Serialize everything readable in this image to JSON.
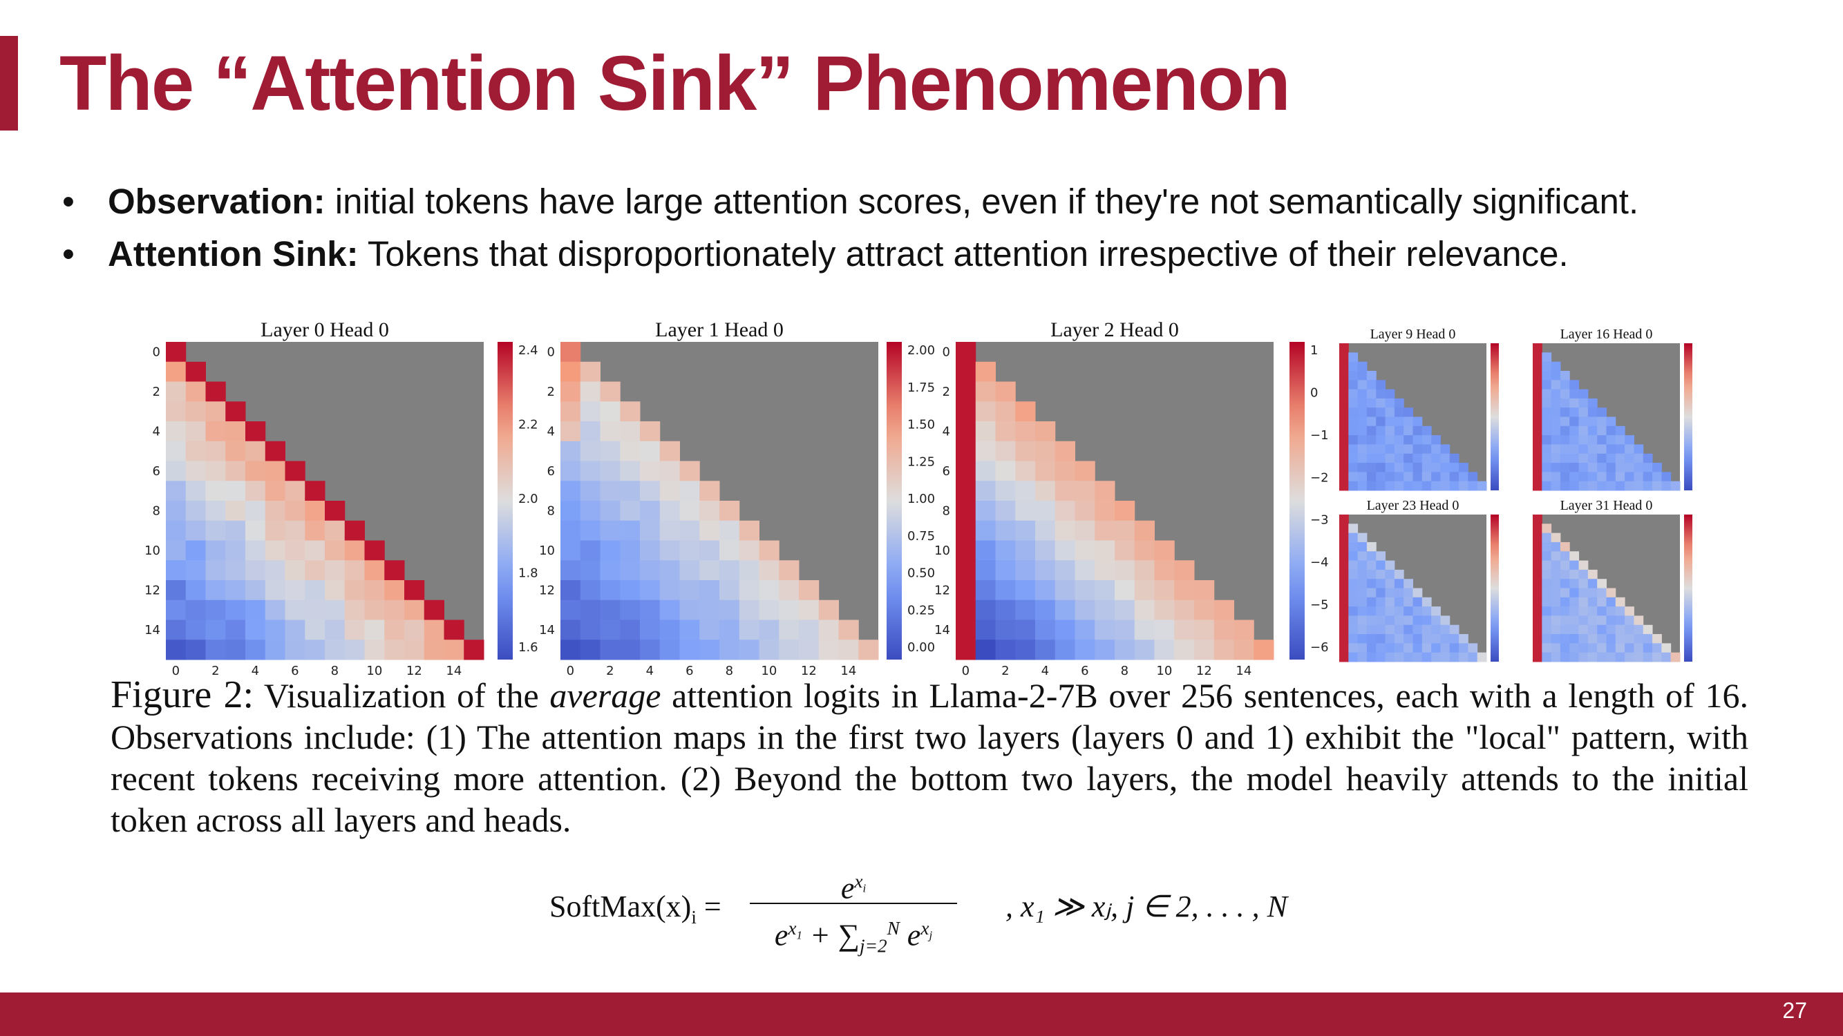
{
  "slide": {
    "title": "The “Attention Sink” Phenomenon",
    "page_number": "27",
    "bullets": [
      {
        "term": "Observation:",
        "text": " initial tokens have large attention scores, even if they're not semantically significant."
      },
      {
        "term": "Attention Sink:",
        "text": " Tokens that disproportionately attract attention irrespective of their relevance."
      }
    ]
  },
  "figure": {
    "panels": [
      {
        "title": "Layer 0 Head 0",
        "xticks": [
          "0",
          "2",
          "4",
          "6",
          "8",
          "10",
          "12",
          "14"
        ],
        "yticks": [
          "0",
          "2",
          "4",
          "6",
          "8",
          "10",
          "12",
          "14"
        ],
        "colorbar_ticks": [
          "2.4",
          "2.2",
          "2.0",
          "1.8",
          "1.6"
        ]
      },
      {
        "title": "Layer 1 Head 0",
        "xticks": [
          "0",
          "2",
          "4",
          "6",
          "8",
          "10",
          "12",
          "14"
        ],
        "yticks": [
          "0",
          "2",
          "4",
          "6",
          "8",
          "10",
          "12",
          "14"
        ],
        "colorbar_ticks": [
          "2.00",
          "1.75",
          "1.50",
          "1.25",
          "1.00",
          "0.75",
          "0.50",
          "0.25",
          "0.00"
        ]
      },
      {
        "title": "Layer 2 Head 0",
        "xticks": [
          "0",
          "2",
          "4",
          "6",
          "8",
          "10",
          "12",
          "14"
        ],
        "yticks": [
          "0",
          "2",
          "4",
          "6",
          "8",
          "10",
          "12",
          "14"
        ],
        "colorbar_ticks": [
          "1",
          "0",
          "−1",
          "−2",
          "−3",
          "−4",
          "−5",
          "−6"
        ]
      },
      {
        "title": "Layer 9 Head 0"
      },
      {
        "title": "Layer 16 Head 0"
      },
      {
        "title": "Layer 23 Head 0"
      },
      {
        "title": "Layer 31 Head 0"
      }
    ],
    "caption": {
      "label": "Figure 2:",
      "before_italic": " Visualization of the ",
      "italic": "average",
      "after_italic": " attention logits in Llama-2-7B over 256 sentences, each with a length of 16. Observations include: (1) The attention maps in the first two layers (layers 0 and 1) exhibit the \"local\" pattern, with recent tokens receiving more attention. (2) Beyond the bottom two layers, the model heavily attends to the initial token across all layers and heads."
    }
  },
  "formula": {
    "lhs": "SoftMax(x)",
    "lhs_sub": "i",
    "equals": " =",
    "numerator_base": "e",
    "numerator_exp": "x",
    "numerator_exp_sub": "i",
    "denominator": "e^{x_1} + Σ_{j=2}^{N} e^{x_j}",
    "condition": ",     x₁ ≫ xⱼ, j ∈ 2, . . . , N"
  }
}
